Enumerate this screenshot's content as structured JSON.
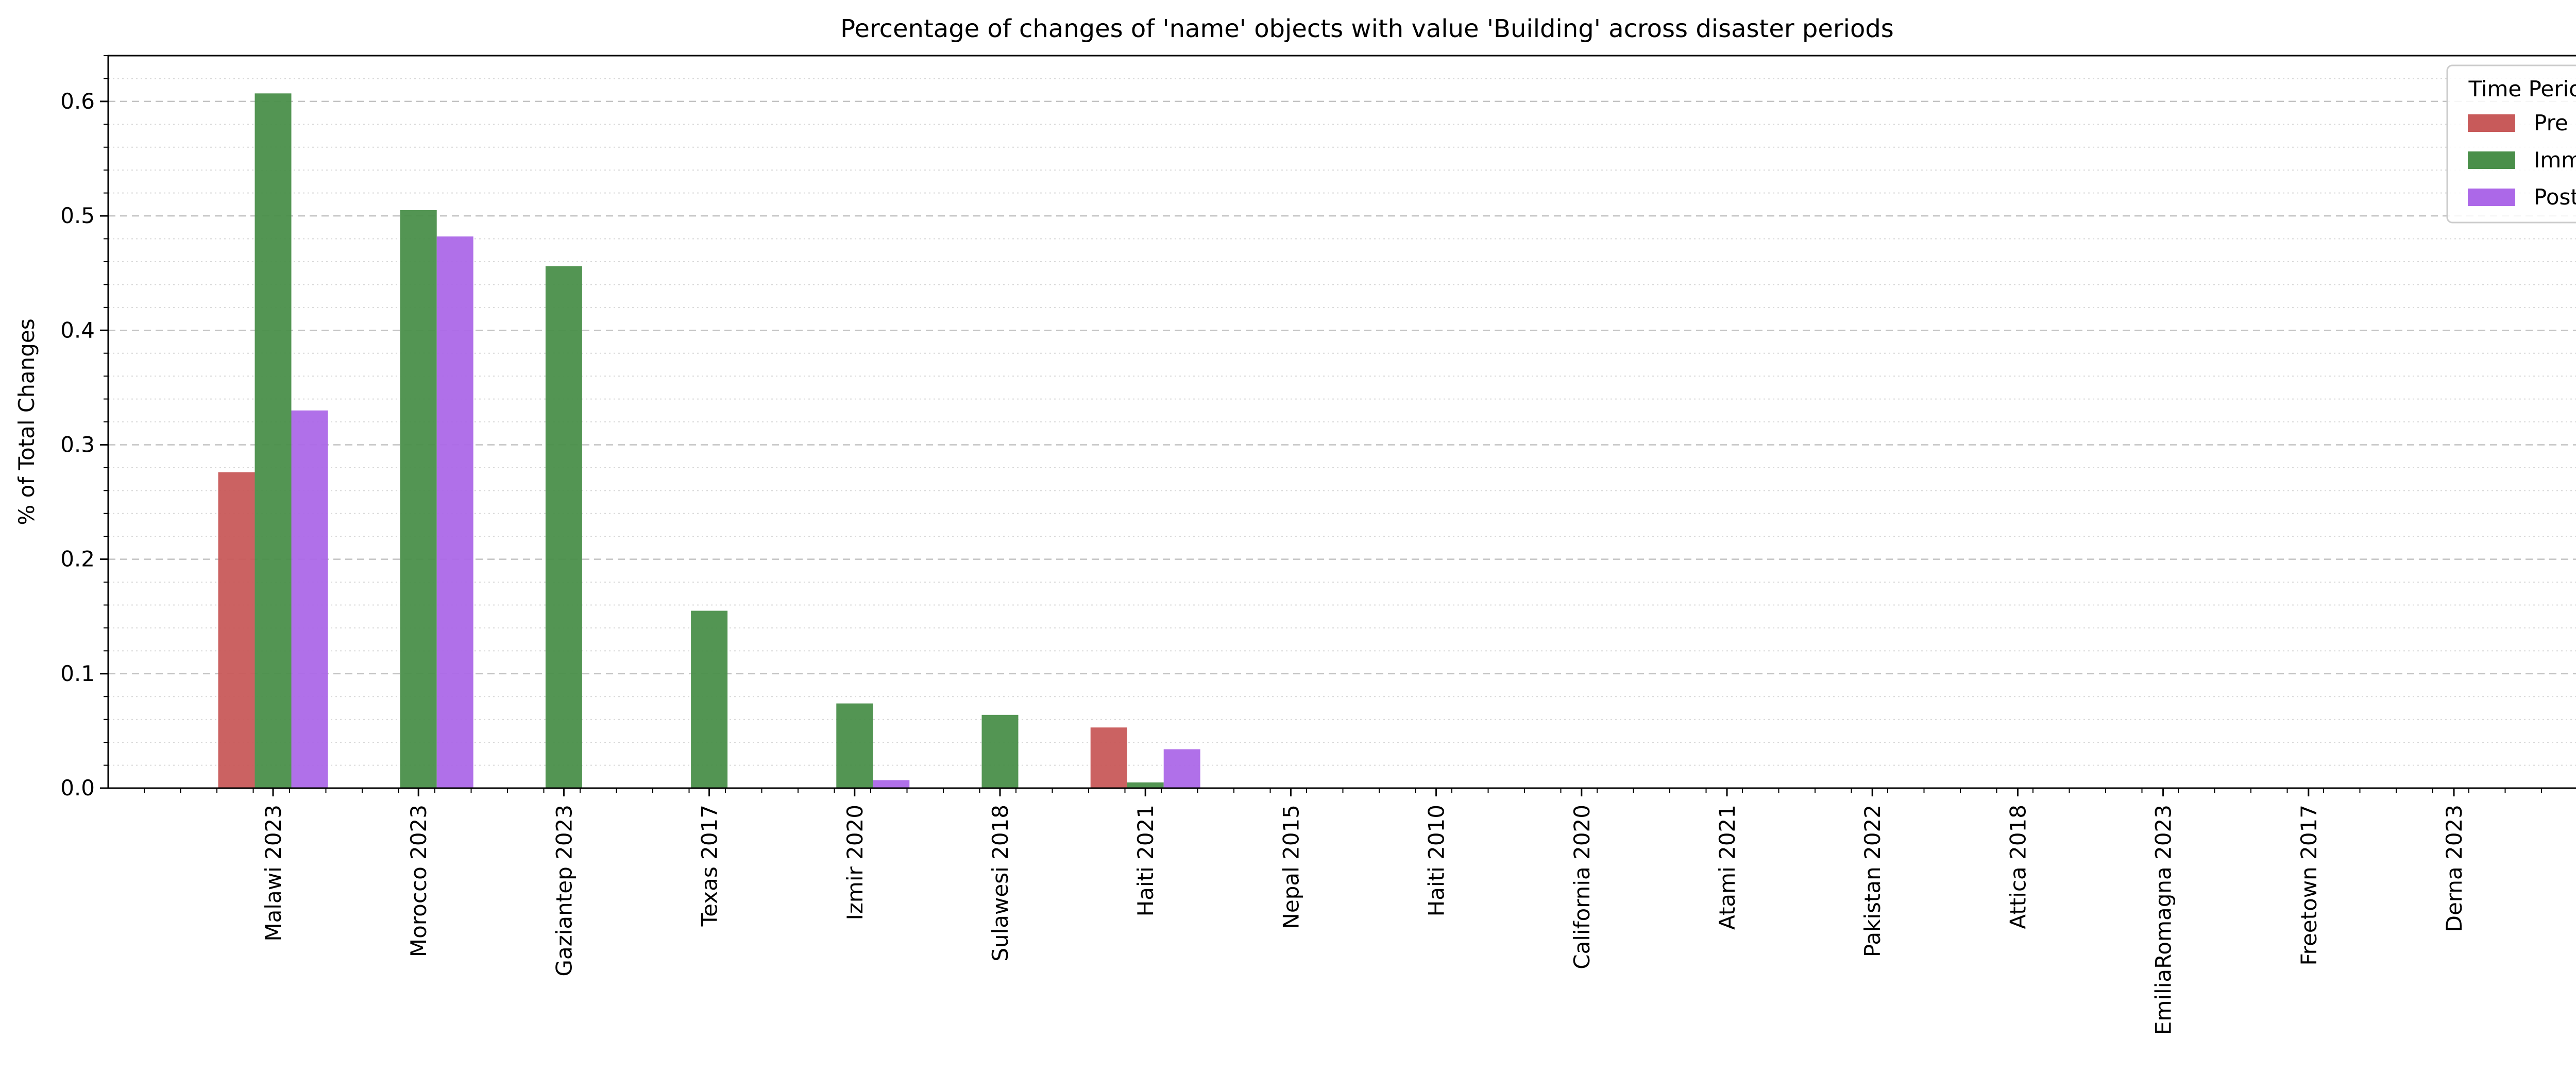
{
  "chart_data": {
    "type": "bar",
    "title": "Percentage of changes of 'name' objects with value 'Building' across disaster periods",
    "xlabel": "",
    "ylabel": "% of Total Changes",
    "ylim": [
      0,
      0.64
    ],
    "yticks": [
      0.0,
      0.1,
      0.2,
      0.3,
      0.4,
      0.5,
      0.6
    ],
    "ytick_labels": [
      "0.0",
      "0.1",
      "0.2",
      "0.3",
      "0.4",
      "0.5",
      "0.6"
    ],
    "grid": true,
    "legend": {
      "title": "Time Period",
      "position": "top-right"
    },
    "categories": [
      "Malawi 2023",
      "Morocco 2023",
      "Gaziantep 2023",
      "Texas 2017",
      "Izmir 2020",
      "Sulawesi 2018",
      "Haiti 2021",
      "Nepal 2015",
      "Haiti 2010",
      "California 2020",
      "Atami 2021",
      "Pakistan 2022",
      "Attica 2018",
      "EmiliaRomagna 2023",
      "Freetown 2017",
      "Derna 2023"
    ],
    "series": [
      {
        "name": "Pre",
        "color": "#c85a5a",
        "values": [
          0.276,
          0,
          0,
          0,
          0,
          0,
          0.053,
          0,
          0,
          0,
          0,
          0,
          0,
          0,
          0,
          0
        ]
      },
      {
        "name": "Imm",
        "color": "#4a8f4a",
        "values": [
          0.607,
          0.505,
          0.456,
          0.155,
          0.074,
          0.064,
          0.005,
          0,
          0,
          0,
          0,
          0,
          0,
          0,
          0,
          0
        ]
      },
      {
        "name": "Post",
        "color": "#ac68e8",
        "values": [
          0.33,
          0.482,
          0,
          0,
          0.007,
          0,
          0.034,
          0,
          0,
          0,
          0,
          0,
          0,
          0,
          0,
          0
        ]
      }
    ]
  }
}
